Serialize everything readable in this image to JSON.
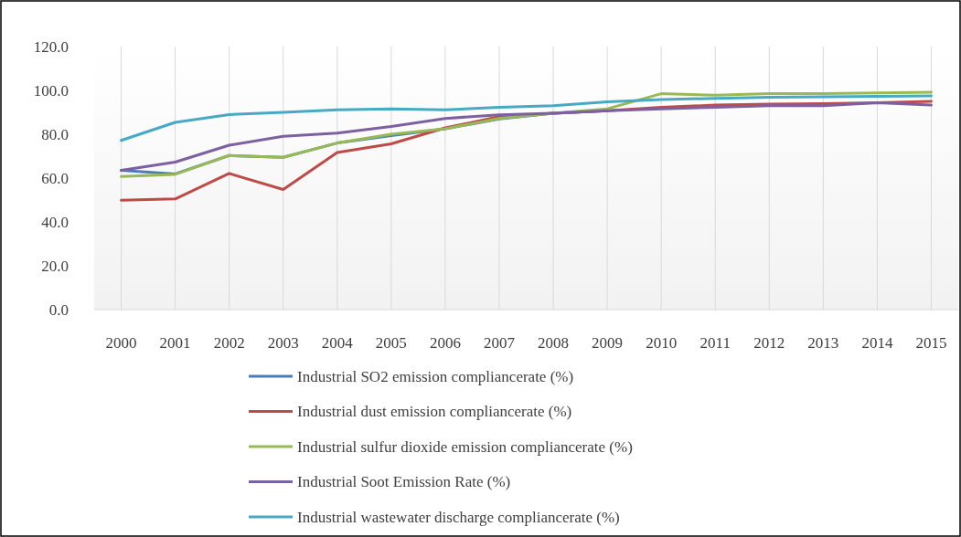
{
  "chart_data": {
    "type": "line",
    "categories": [
      "2000",
      "2001",
      "2002",
      "2003",
      "2004",
      "2005",
      "2006",
      "2007",
      "2008",
      "2009",
      "2010",
      "2011",
      "2012",
      "2013",
      "2014",
      "2015"
    ],
    "ylim": [
      0,
      120
    ],
    "yticks": [
      {
        "value": 0,
        "label": "0.0"
      },
      {
        "value": 20,
        "label": "20.0"
      },
      {
        "value": 40,
        "label": "40.0"
      },
      {
        "value": 60,
        "label": "60.0"
      },
      {
        "value": 80,
        "label": "80.0"
      },
      {
        "value": 100,
        "label": "100.0"
      },
      {
        "value": 120,
        "label": "120.0"
      }
    ],
    "grid": "x",
    "legend": "bottom",
    "marker": "none",
    "line_style": "solid",
    "series": [
      {
        "name": "Industrial SO2 emission compliancerate (%)",
        "color": "#4a7ebb",
        "values": [
          63.5,
          61.9,
          70.3,
          69.5,
          76,
          79.4,
          82.5,
          87,
          89.6,
          90.7,
          null,
          null,
          null,
          null,
          null,
          null
        ]
      },
      {
        "name": "Industrial dust emission compliancerate (%)",
        "color": "#be4b48",
        "values": [
          49.9,
          50.5,
          62.1,
          54.8,
          71.7,
          75.6,
          82.9,
          88,
          89.6,
          90.7,
          92.3,
          93.3,
          93.7,
          94,
          94.4,
          95
        ]
      },
      {
        "name": "Industrial sulfur dioxide emission compliancerate (%)",
        "color": "#98b954",
        "values": [
          60.7,
          61.7,
          70.3,
          69.5,
          76,
          80,
          82.5,
          87.2,
          89.6,
          91.6,
          98.5,
          97.8,
          98.5,
          98.5,
          98.9,
          99.2
        ]
      },
      {
        "name": "Industrial Soot Emission Rate (%)",
        "color": "#7d60a0",
        "values": [
          63.5,
          67.3,
          75,
          79.1,
          80.5,
          83.5,
          87.2,
          88.9,
          89.6,
          90.7,
          91.6,
          92.3,
          93,
          93,
          94.4,
          93.3
        ]
      },
      {
        "name": "Industrial wastewater discharge compliancerate (%)",
        "color": "#46aac5",
        "values": [
          77.2,
          85.4,
          89,
          90,
          91.1,
          91.6,
          91.1,
          92.3,
          93,
          94.8,
          95.8,
          96.4,
          96.9,
          97.1,
          97.3,
          97.5
        ]
      }
    ]
  }
}
